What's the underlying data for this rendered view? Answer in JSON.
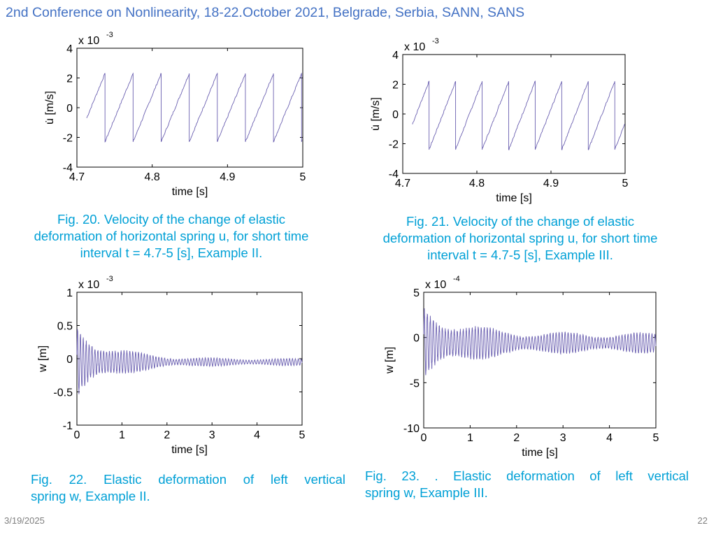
{
  "header": {
    "title": "2nd Conference on Nonlinearity, 18-22.October 2021, Belgrade, Serbia, SANN, SANS"
  },
  "footer": {
    "date": "3/19/2025",
    "page": "22"
  },
  "captions": {
    "fig20": [
      "Fig. 20. Velocity of the change of elastic",
      "deformation of horizontal spring u, for short time",
      "interval t = 4.7-5 [s], Example II."
    ],
    "fig21": [
      "Fig. 21. Velocity of the change of elastic",
      "deformation of horizontal spring u, for short time",
      "interval t = 4.7-5 [s], Example III."
    ],
    "fig22": [
      "Fig. 22. Elastic deformation of left vertical",
      "spring w, Example II."
    ],
    "fig23": [
      "Fig. 23. . Elastic deformation of left vertical",
      "spring w, Example III."
    ]
  },
  "colors": {
    "header": "#4472c4",
    "caption": "#00a0d6",
    "line": "#6a5fb0",
    "footer": "#7f7f7f"
  },
  "chart_data": [
    {
      "id": "fig20",
      "type": "line",
      "xlabel": "time [s]",
      "ylabel": "u̇ [m/s]",
      "multiplier": "x 10",
      "multiplier_exp": "-3",
      "xlim": [
        4.7,
        5.0
      ],
      "ylim": [
        -4,
        4
      ],
      "xticks": [
        4.7,
        4.8,
        4.9,
        5.0
      ],
      "xtick_labels": [
        "4.7",
        "4.8",
        "4.9",
        "5"
      ],
      "yticks": [
        4,
        2,
        0,
        -2,
        -4
      ],
      "ytick_labels": [
        "4",
        "2",
        "0",
        "-2",
        "-4"
      ],
      "grid": false,
      "series": [
        {
          "style": "sawtooth",
          "x_start": 4.713,
          "x_end": 5.0,
          "period": 0.0373,
          "jump_phase": 0.0373,
          "min": -2.3,
          "max": 2.3
        }
      ]
    },
    {
      "id": "fig21",
      "type": "line",
      "xlabel": "time [s]",
      "ylabel": "u̇ [m/s]",
      "multiplier": "x 10",
      "multiplier_exp": "-3",
      "xlim": [
        4.7,
        5.0
      ],
      "ylim": [
        -4,
        4
      ],
      "xticks": [
        4.7,
        4.8,
        4.9,
        5.0
      ],
      "xtick_labels": [
        "4.7",
        "4.8",
        "4.9",
        "5"
      ],
      "yticks": [
        4,
        2,
        0,
        -2,
        -4
      ],
      "ytick_labels": [
        "4",
        "2",
        "0",
        "-2",
        "-4"
      ],
      "grid": false,
      "series": [
        {
          "style": "sawtooth",
          "x_start": 4.713,
          "x_end": 5.0,
          "period": 0.0358,
          "jump_phase": 0.0355,
          "min": -2.4,
          "max": 2.2
        }
      ]
    },
    {
      "id": "fig22",
      "type": "line",
      "xlabel": "time [s]",
      "ylabel": "w [m]",
      "multiplier": "x 10",
      "multiplier_exp": "-3",
      "xlim": [
        0,
        5
      ],
      "ylim": [
        -1,
        1
      ],
      "xticks": [
        0,
        1,
        2,
        3,
        4,
        5
      ],
      "xtick_labels": [
        "0",
        "1",
        "2",
        "3",
        "4",
        "5"
      ],
      "yticks": [
        1,
        0.5,
        0,
        -0.5,
        -1
      ],
      "ytick_labels": [
        "1",
        "0.5",
        "0",
        "-0.5",
        "-1"
      ],
      "grid": false,
      "series": [
        {
          "style": "decaying-oscillation",
          "x_start": 0,
          "x_end": 5,
          "offset": -0.05,
          "initial_amplitude": 0.6,
          "final_amplitude": 0.05,
          "peak_min": -0.7,
          "peak_max": 0.55
        }
      ]
    },
    {
      "id": "fig23",
      "type": "line",
      "xlabel": "time [s]",
      "ylabel": "w [m]",
      "multiplier": "x 10",
      "multiplier_exp": "-4",
      "xlim": [
        0,
        5
      ],
      "ylim": [
        -10,
        5
      ],
      "xticks": [
        0,
        1,
        2,
        3,
        4,
        5
      ],
      "xtick_labels": [
        "0",
        "1",
        "2",
        "3",
        "4",
        "5"
      ],
      "yticks": [
        5,
        0,
        -5,
        -10
      ],
      "ytick_labels": [
        "5",
        "0",
        "-5",
        "-10"
      ],
      "grid": false,
      "series": [
        {
          "style": "decaying-oscillation",
          "x_start": 0,
          "x_end": 5,
          "offset": -0.6,
          "initial_amplitude": 4.5,
          "final_amplitude": 1.1,
          "peak_min": -5.6,
          "peak_max": 4.8
        }
      ]
    }
  ]
}
